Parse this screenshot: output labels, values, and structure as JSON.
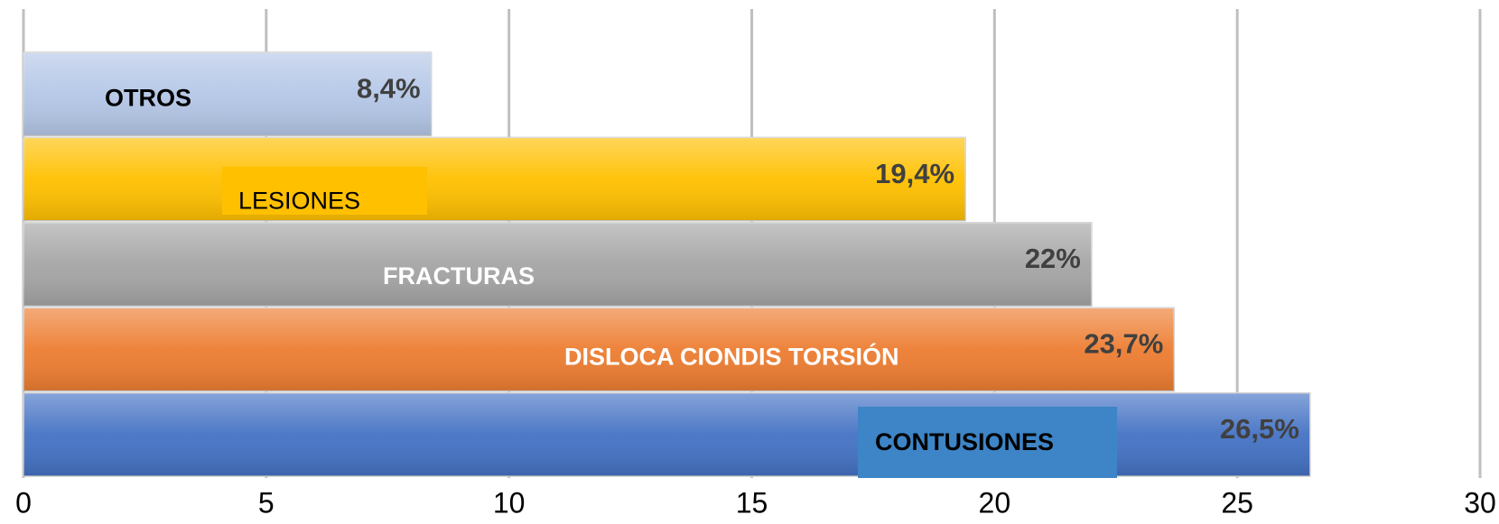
{
  "chart_data": {
    "type": "barh",
    "categories": [
      "OTROS",
      "LESIONES",
      "FRACTURAS",
      "DISLOCA CIONDIS TORSIÓN",
      "CONTUSIONES"
    ],
    "values": [
      8.4,
      19.4,
      22,
      23.7,
      26.5
    ],
    "value_labels": [
      "8,4%",
      "19,4%",
      "22%",
      "23,7%",
      "26,5%"
    ],
    "colors": [
      "#b4c7e7",
      "#ffc000",
      "#a5a5a5",
      "#ed7d31",
      "#4472c4"
    ],
    "xlim": [
      0,
      30
    ],
    "xticks": [
      0,
      5,
      10,
      15,
      20,
      25,
      30
    ],
    "grid": true
  }
}
